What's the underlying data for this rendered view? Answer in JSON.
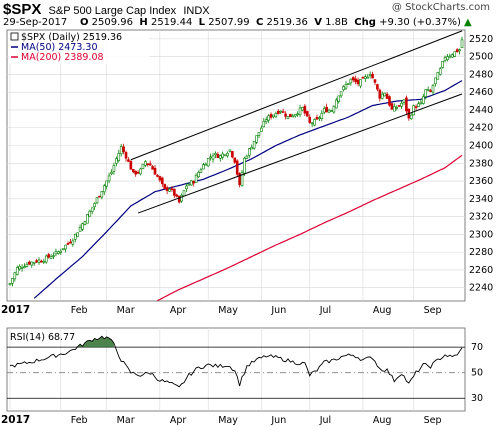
{
  "header": {
    "symbol": "$SPX",
    "name": "S&P 500 Large Cap Index",
    "exchange": "INDX",
    "watermark": "@ StockCharts.com",
    "date": "29-Sep-2017",
    "open_label": "O",
    "open": "2509.96",
    "high_label": "H",
    "high": "2519.44",
    "low_label": "L",
    "low": "2507.99",
    "close_label": "C",
    "close": "2519.36",
    "volume_label": "V",
    "volume": "1.8B",
    "change_label": "Chg",
    "change": "+9.30 (+0.37%)",
    "change_arrow": "▲"
  },
  "legend": {
    "price": "$SPX (Daily) 2519.36",
    "ma50": "MA(50) 2473.30",
    "ma200": "MA(200) 2389.08"
  },
  "rsi_legend": "RSI(14) 68.77",
  "colors": {
    "up": "#008000",
    "down": "#cc0000",
    "ma50": "#000080",
    "ma200": "#dd0033",
    "rsi_fill": "#2e6f2e",
    "grid": "#d8d8d8"
  },
  "chart_data": {
    "type": "candlestick",
    "x_start_label": "2017",
    "x_tick_labels": [
      "Feb",
      "Mar",
      "Apr",
      "May",
      "Jun",
      "Jul",
      "Aug",
      "Sep"
    ],
    "y_tick_labels": [
      "2240",
      "2260",
      "2280",
      "2300",
      "2320",
      "2340",
      "2360",
      "2380",
      "2400",
      "2420",
      "2440",
      "2460",
      "2480",
      "2500",
      "2520"
    ],
    "ylim": [
      2225,
      2530
    ],
    "n_bars": 188,
    "anchors_close": [
      [
        0,
        2245
      ],
      [
        3,
        2262
      ],
      [
        8,
        2268
      ],
      [
        14,
        2272
      ],
      [
        20,
        2280
      ],
      [
        26,
        2295
      ],
      [
        30,
        2312
      ],
      [
        34,
        2330
      ],
      [
        38,
        2350
      ],
      [
        42,
        2370
      ],
      [
        44,
        2385
      ],
      [
        46,
        2398
      ],
      [
        48,
        2388
      ],
      [
        51,
        2368
      ],
      [
        54,
        2372
      ],
      [
        56,
        2382
      ],
      [
        58,
        2378
      ],
      [
        61,
        2365
      ],
      [
        64,
        2350
      ],
      [
        66,
        2352
      ],
      [
        68,
        2345
      ],
      [
        70,
        2336
      ],
      [
        73,
        2355
      ],
      [
        76,
        2360
      ],
      [
        78,
        2370
      ],
      [
        80,
        2378
      ],
      [
        82,
        2385
      ],
      [
        84,
        2390
      ],
      [
        87,
        2388
      ],
      [
        89,
        2392
      ],
      [
        91,
        2395
      ],
      [
        93,
        2383
      ],
      [
        95,
        2354
      ],
      [
        97,
        2385
      ],
      [
        100,
        2400
      ],
      [
        103,
        2415
      ],
      [
        106,
        2430
      ],
      [
        109,
        2435
      ],
      [
        112,
        2440
      ],
      [
        115,
        2432
      ],
      [
        118,
        2436
      ],
      [
        121,
        2442
      ],
      [
        124,
        2425
      ],
      [
        127,
        2428
      ],
      [
        130,
        2440
      ],
      [
        133,
        2440
      ],
      [
        136,
        2458
      ],
      [
        139,
        2468
      ],
      [
        141,
        2474
      ],
      [
        144,
        2470
      ],
      [
        147,
        2476
      ],
      [
        149,
        2482
      ],
      [
        151,
        2470
      ],
      [
        153,
        2455
      ],
      [
        155,
        2460
      ],
      [
        158,
        2440
      ],
      [
        161,
        2445
      ],
      [
        163,
        2450
      ],
      [
        165,
        2430
      ],
      [
        167,
        2443
      ],
      [
        170,
        2447
      ],
      [
        172,
        2462
      ],
      [
        174,
        2460
      ],
      [
        176,
        2475
      ],
      [
        178,
        2485
      ],
      [
        180,
        2500
      ],
      [
        182,
        2502
      ],
      [
        184,
        2505
      ],
      [
        186,
        2508
      ],
      [
        187,
        2519
      ]
    ],
    "ma50_anchors": [
      [
        10,
        2228
      ],
      [
        20,
        2252
      ],
      [
        30,
        2275
      ],
      [
        40,
        2303
      ],
      [
        50,
        2332
      ],
      [
        60,
        2348
      ],
      [
        70,
        2355
      ],
      [
        80,
        2362
      ],
      [
        90,
        2373
      ],
      [
        100,
        2385
      ],
      [
        110,
        2400
      ],
      [
        120,
        2412
      ],
      [
        130,
        2422
      ],
      [
        140,
        2432
      ],
      [
        150,
        2445
      ],
      [
        160,
        2450
      ],
      [
        170,
        2452
      ],
      [
        180,
        2462
      ],
      [
        187,
        2473
      ]
    ],
    "ma200_anchors": [
      [
        60,
        2224
      ],
      [
        70,
        2238
      ],
      [
        80,
        2250
      ],
      [
        90,
        2262
      ],
      [
        100,
        2275
      ],
      [
        110,
        2288
      ],
      [
        120,
        2300
      ],
      [
        130,
        2313
      ],
      [
        140,
        2325
      ],
      [
        150,
        2338
      ],
      [
        160,
        2350
      ],
      [
        170,
        2362
      ],
      [
        180,
        2375
      ],
      [
        187,
        2389
      ]
    ],
    "channel_upper": [
      [
        50,
        2384
      ],
      [
        187,
        2529
      ]
    ],
    "channel_lower": [
      [
        53,
        2324
      ],
      [
        187,
        2458
      ]
    ],
    "rsi": {
      "ylim": [
        20,
        85
      ],
      "y_tick_labels": [
        "30",
        "50",
        "70"
      ],
      "levels": [
        30,
        50,
        70
      ],
      "anchors": [
        [
          0,
          55
        ],
        [
          8,
          58
        ],
        [
          16,
          62
        ],
        [
          24,
          66
        ],
        [
          30,
          72
        ],
        [
          34,
          76
        ],
        [
          38,
          78
        ],
        [
          41,
          77
        ],
        [
          43,
          72
        ],
        [
          46,
          60
        ],
        [
          50,
          50
        ],
        [
          54,
          48
        ],
        [
          58,
          50
        ],
        [
          62,
          44
        ],
        [
          66,
          42
        ],
        [
          70,
          38
        ],
        [
          74,
          48
        ],
        [
          78,
          54
        ],
        [
          82,
          56
        ],
        [
          86,
          55
        ],
        [
          90,
          56
        ],
        [
          93,
          52
        ],
        [
          95,
          41
        ],
        [
          98,
          55
        ],
        [
          102,
          60
        ],
        [
          106,
          63
        ],
        [
          110,
          62
        ],
        [
          114,
          60
        ],
        [
          118,
          58
        ],
        [
          122,
          57
        ],
        [
          124,
          48
        ],
        [
          127,
          52
        ],
        [
          130,
          58
        ],
        [
          134,
          60
        ],
        [
          138,
          63
        ],
        [
          142,
          64
        ],
        [
          146,
          60
        ],
        [
          150,
          62
        ],
        [
          153,
          53
        ],
        [
          156,
          52
        ],
        [
          159,
          44
        ],
        [
          162,
          50
        ],
        [
          165,
          41
        ],
        [
          168,
          50
        ],
        [
          171,
          56
        ],
        [
          174,
          55
        ],
        [
          177,
          60
        ],
        [
          180,
          64
        ],
        [
          183,
          62
        ],
        [
          186,
          66
        ],
        [
          187,
          69
        ]
      ]
    }
  }
}
